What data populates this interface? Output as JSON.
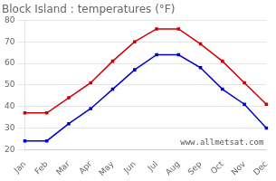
{
  "chart_data": {
    "type": "line",
    "title": "Block Island : temperatures (°F)",
    "categories": [
      "Jan",
      "Feb",
      "Mar",
      "Apr",
      "May",
      "Jun",
      "Jul",
      "Aug",
      "Sep",
      "Oct",
      "Nov",
      "Dec"
    ],
    "series": [
      {
        "color": "#cc0000",
        "marker": "square",
        "line_style": "solid",
        "values": [
          37,
          37,
          44,
          51,
          61,
          70,
          76,
          76,
          69,
          61,
          51,
          41
        ]
      },
      {
        "color": "#0000cc",
        "marker": "square",
        "line_style": "solid",
        "values": [
          24,
          24,
          32,
          39,
          48,
          57,
          64,
          64,
          58,
          48,
          41,
          30
        ]
      }
    ],
    "ylim": [
      20,
      80
    ],
    "yticks": [
      20,
      30,
      40,
      50,
      60,
      70,
      80
    ],
    "grid": true,
    "annotations": [
      "www.allmetsat.com"
    ]
  }
}
